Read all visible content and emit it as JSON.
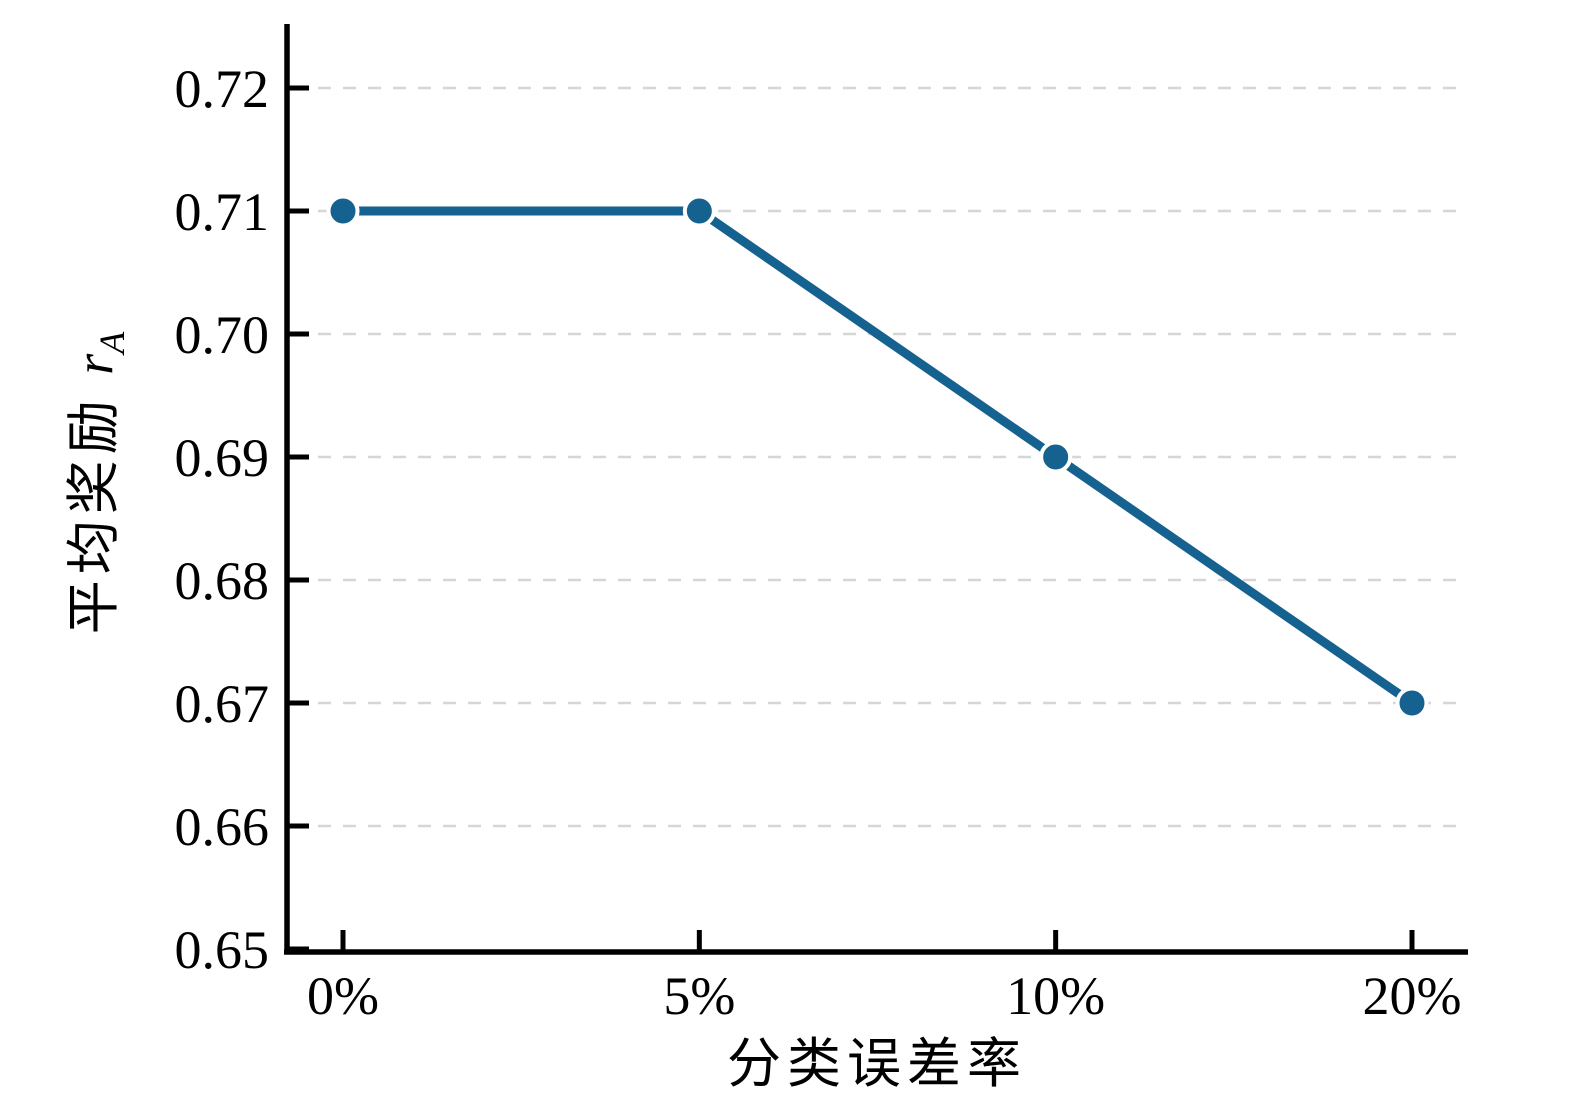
{
  "chart_data": {
    "type": "line",
    "x": [
      "0%",
      "5%",
      "10%",
      "20%"
    ],
    "series": [
      {
        "name": "平均奖励",
        "values": [
          0.71,
          0.71,
          0.69,
          0.67
        ]
      }
    ],
    "title": "",
    "xlabel": "分类误差率",
    "ylabel": "平均奖励 r_A",
    "ylabel_parts": {
      "cjk": "平均奖励",
      "var": "r",
      "sub": "A"
    },
    "ylim": [
      0.65,
      0.72
    ],
    "yticks": [
      0.65,
      0.66,
      0.67,
      0.68,
      0.69,
      0.7,
      0.71,
      0.72
    ],
    "ytick_labels": [
      "0.65",
      "0.66",
      "0.67",
      "0.68",
      "0.69",
      "0.70",
      "0.71",
      "0.72"
    ],
    "grid": "horizontal-dashed",
    "legend_position": "none",
    "line_color": "#15618f",
    "marker": "circle",
    "marker_edge_color": "#ffffff",
    "grid_color": "#d6d6d6",
    "axis_color": "#000000"
  }
}
